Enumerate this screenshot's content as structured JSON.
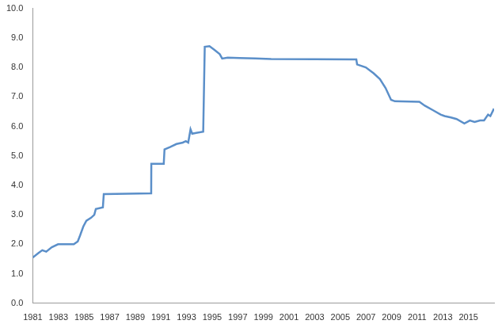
{
  "chart_data": {
    "type": "line",
    "x": [
      1981.0,
      1981.43,
      1981.74,
      1982.05,
      1982.48,
      1982.97,
      1983.59,
      1984.2,
      1984.51,
      1984.69,
      1984.94,
      1985.18,
      1985.55,
      1985.8,
      1985.92,
      1986.47,
      1986.54,
      1990.24,
      1990.25,
      1991.22,
      1991.28,
      1991.71,
      1992.21,
      1992.7,
      1992.95,
      1993.13,
      1993.31,
      1993.44,
      1993.75,
      1994.3,
      1994.42,
      1994.79,
      1995.16,
      1995.59,
      1995.78,
      1996.21,
      1997.13,
      1998.36,
      1999.6,
      2006.25,
      2006.31,
      2006.99,
      2007.6,
      2008.09,
      2008.53,
      2008.96,
      2009.26,
      2011.17,
      2011.6,
      2012.22,
      2012.83,
      2013.14,
      2013.63,
      2014.07,
      2014.68,
      2015.11,
      2015.48,
      2015.91,
      2016.22,
      2016.53,
      2016.71,
      2016.99
    ],
    "values": [
      1.55,
      1.7,
      1.8,
      1.75,
      1.9,
      2.0,
      2.0,
      2.0,
      2.1,
      2.3,
      2.6,
      2.8,
      2.9,
      3.0,
      3.2,
      3.25,
      3.7,
      3.73,
      4.73,
      4.73,
      5.22,
      5.3,
      5.4,
      5.45,
      5.5,
      5.45,
      5.9,
      5.75,
      5.78,
      5.82,
      8.7,
      8.72,
      8.6,
      8.45,
      8.3,
      8.33,
      8.32,
      8.3,
      8.28,
      8.27,
      8.1,
      8.0,
      7.8,
      7.6,
      7.3,
      6.9,
      6.85,
      6.83,
      6.7,
      6.55,
      6.4,
      6.35,
      6.3,
      6.25,
      6.1,
      6.2,
      6.15,
      6.2,
      6.2,
      6.4,
      6.35,
      6.6
    ],
    "color": "#5b8fc9",
    "xlim": [
      1981,
      2017
    ],
    "xticks": [
      1981,
      1983,
      1985,
      1987,
      1989,
      1991,
      1993,
      1995,
      1997,
      1999,
      2001,
      2003,
      2005,
      2007,
      2009,
      2011,
      2013,
      2015
    ],
    "ylim": [
      0,
      10
    ],
    "yticks": [
      {
        "value": 0,
        "label": "0.0"
      },
      {
        "value": 1,
        "label": "1.0"
      },
      {
        "value": 2,
        "label": "2.0"
      },
      {
        "value": 3,
        "label": "3.0"
      },
      {
        "value": 4,
        "label": "4.0"
      },
      {
        "value": 5,
        "label": "5.0"
      },
      {
        "value": 6,
        "label": "6.0"
      },
      {
        "value": 7,
        "label": "7.0"
      },
      {
        "value": 8,
        "label": "8.0"
      },
      {
        "value": 9,
        "label": "9.0"
      },
      {
        "value": 10,
        "label": "10.0"
      }
    ],
    "grid": false
  }
}
